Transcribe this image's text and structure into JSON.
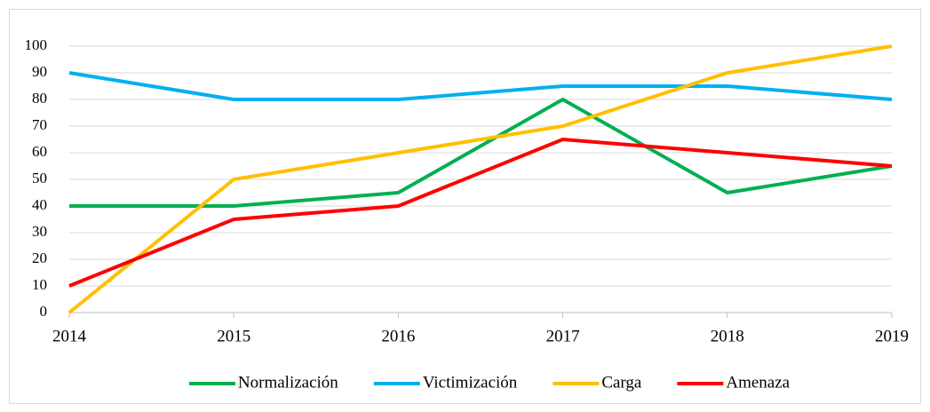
{
  "chart_data": {
    "type": "line",
    "categories": [
      "2014",
      "2015",
      "2016",
      "2017",
      "2018",
      "2019"
    ],
    "series": [
      {
        "name": "Normalización",
        "color": "#00b050",
        "values": [
          40,
          40,
          45,
          80,
          45,
          55
        ]
      },
      {
        "name": "Victimización",
        "color": "#00b0f0",
        "values": [
          90,
          80,
          80,
          85,
          85,
          80
        ]
      },
      {
        "name": "Carga",
        "color": "#ffc000",
        "values": [
          0,
          50,
          60,
          70,
          90,
          100
        ]
      },
      {
        "name": "Amenaza",
        "color": "#ff0000",
        "values": [
          10,
          35,
          40,
          65,
          60,
          55
        ]
      }
    ],
    "ylim": [
      0,
      100
    ],
    "yticks": [
      0,
      10,
      20,
      30,
      40,
      50,
      60,
      70,
      80,
      90,
      100
    ],
    "grid": true,
    "legend": "bottom"
  }
}
